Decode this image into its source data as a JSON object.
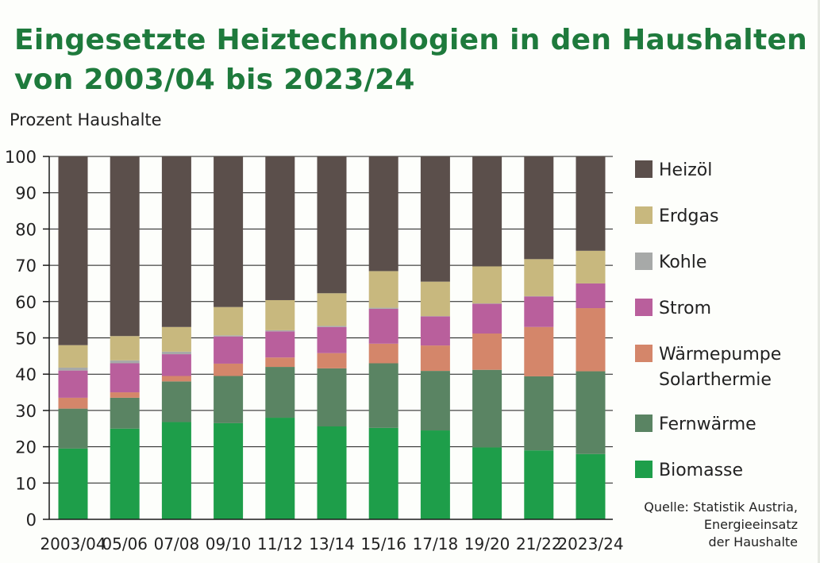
{
  "title_line1": "Eingesetzte Heiztechnologien in den Haushalten",
  "title_line2": "von 2003/04 bis 2023/24",
  "source_line1": "Quelle: Statistik Austria,",
  "source_line2": "Energieeinsatz",
  "source_line3": "der Haushalte",
  "chart_data": {
    "type": "bar",
    "stacked": true,
    "ylabel": "Prozent Haushalte",
    "ylim": [
      0,
      100
    ],
    "yticks": [
      0,
      10,
      20,
      30,
      40,
      50,
      60,
      70,
      80,
      90,
      100
    ],
    "legend_position": "right",
    "categories": [
      "2003/04",
      "05/06",
      "07/08",
      "09/10",
      "11/12",
      "13/14",
      "15/16",
      "17/18",
      "19/20",
      "21/22",
      "2023/24"
    ],
    "series": [
      {
        "name": "Biomasse",
        "color": "#1e9e4a",
        "values": [
          19.5,
          25,
          26.8,
          26.5,
          28,
          25.6,
          25.2,
          24.5,
          19.8,
          19,
          18
        ]
      },
      {
        "name": "Fernwärme",
        "color": "#5a8463",
        "values": [
          11,
          8.5,
          11.2,
          13,
          14,
          16,
          17.8,
          16.4,
          21.4,
          20.4,
          22.8
        ]
      },
      {
        "name": "Wärmepumpe Solarthermie",
        "color": "#d4866a",
        "values": [
          3,
          1.5,
          1.5,
          3.4,
          2.6,
          4.2,
          5.4,
          7,
          10,
          13.6,
          17.4
        ]
      },
      {
        "name": "Strom",
        "color": "#b95f9c",
        "values": [
          7.5,
          8,
          6,
          7.5,
          7.2,
          7.2,
          9.6,
          8,
          8.2,
          8.4,
          6.8
        ]
      },
      {
        "name": "Kohle",
        "color": "#a7a9a8",
        "values": [
          0.8,
          0.8,
          0.7,
          0.3,
          0.3,
          0.3,
          0.3,
          0.1,
          0.1,
          0.1,
          0
        ]
      },
      {
        "name": "Erdgas",
        "color": "#c8b87e",
        "values": [
          6.2,
          6.7,
          6.8,
          7.8,
          8.3,
          9,
          10.1,
          9.5,
          10.2,
          10.2,
          9
        ]
      },
      {
        "name": "Heizöl",
        "color": "#5b4f4b",
        "values": [
          52,
          49.5,
          47,
          41.5,
          39.6,
          37.7,
          31.6,
          34.5,
          30.3,
          28.3,
          26
        ]
      }
    ]
  }
}
